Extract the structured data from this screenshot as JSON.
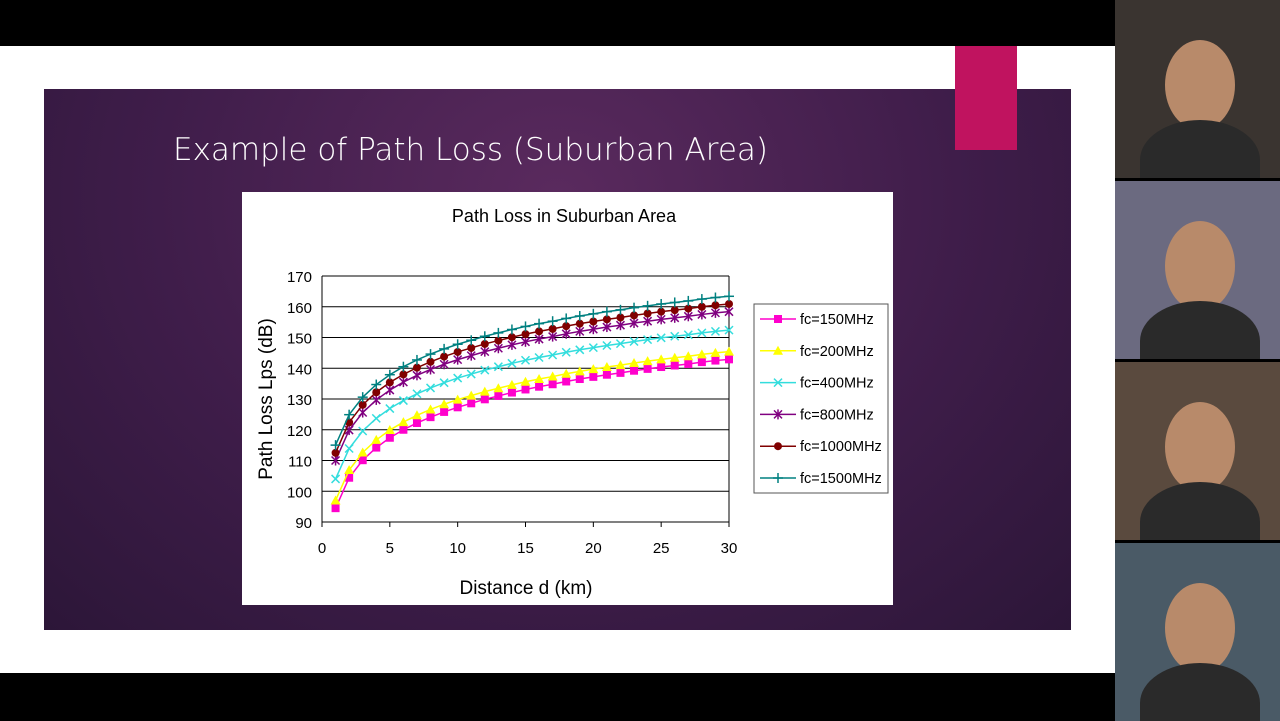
{
  "slide": {
    "title": "Example of Path Loss (Suburban Area)",
    "accent_color": "#c0135f"
  },
  "chart_data": {
    "type": "line",
    "title": "Path Loss in Suburban Area",
    "xlabel": "Distance d (km)",
    "ylabel": "Path Loss Lps (dB)",
    "xlim": [
      0,
      30
    ],
    "ylim": [
      90,
      170
    ],
    "xticks": [
      "0",
      "5",
      "10",
      "15",
      "20",
      "25",
      "30"
    ],
    "yticks": [
      "90",
      "100",
      "110",
      "120",
      "130",
      "140",
      "150",
      "160",
      "170"
    ],
    "grid": "horizontal",
    "legend_position": "right",
    "x": [
      1,
      2,
      3,
      4,
      5,
      6,
      7,
      8,
      9,
      10,
      11,
      12,
      13,
      14,
      15,
      16,
      17,
      18,
      19,
      20,
      21,
      22,
      23,
      24,
      25,
      26,
      27,
      28,
      29,
      30
    ],
    "series": [
      {
        "name": "fc=150MHz",
        "color": "#ff00cc",
        "marker": "square",
        "values": [
          94.5,
          104.4,
          110.1,
          114.2,
          117.4,
          120.0,
          122.2,
          124.1,
          125.8,
          127.3,
          128.6,
          129.9,
          131.0,
          132.1,
          133.1,
          134.0,
          134.8,
          135.7,
          136.5,
          137.2,
          137.9,
          138.5,
          139.2,
          139.8,
          140.4,
          140.9,
          141.4,
          142.0,
          142.5,
          142.9
        ]
      },
      {
        "name": "fc=200MHz",
        "color": "#ffff00",
        "marker": "triangle",
        "values": [
          97.0,
          106.9,
          112.6,
          116.7,
          119.9,
          122.5,
          124.7,
          126.6,
          128.3,
          129.8,
          131.1,
          132.4,
          133.5,
          134.6,
          135.6,
          136.5,
          137.3,
          138.2,
          139.0,
          139.7,
          140.4,
          141.0,
          141.7,
          142.3,
          142.9,
          143.4,
          143.9,
          144.5,
          145.0,
          145.4
        ]
      },
      {
        "name": "fc=400MHz",
        "color": "#33dddd",
        "marker": "x",
        "values": [
          104.0,
          113.9,
          119.6,
          123.7,
          126.9,
          129.5,
          131.7,
          133.6,
          135.3,
          136.8,
          138.1,
          139.4,
          140.5,
          141.6,
          142.6,
          143.5,
          144.3,
          145.2,
          146.0,
          146.7,
          147.4,
          148.0,
          148.7,
          149.3,
          149.9,
          150.4,
          150.9,
          151.5,
          152.0,
          152.4
        ]
      },
      {
        "name": "fc=800MHz",
        "color": "#800080",
        "marker": "asterisk",
        "values": [
          110.0,
          119.9,
          125.6,
          129.7,
          132.9,
          135.5,
          137.7,
          139.6,
          141.3,
          142.8,
          144.1,
          145.4,
          146.5,
          147.6,
          148.6,
          149.5,
          150.3,
          151.2,
          152.0,
          152.7,
          153.4,
          154.0,
          154.7,
          155.3,
          155.9,
          156.4,
          156.9,
          157.5,
          158.0,
          158.4
        ]
      },
      {
        "name": "fc=1000MHz",
        "color": "#800000",
        "marker": "circle",
        "values": [
          112.5,
          122.4,
          128.1,
          132.2,
          135.4,
          138.0,
          140.2,
          142.1,
          143.8,
          145.3,
          146.6,
          147.9,
          149.0,
          150.1,
          151.1,
          152.0,
          152.8,
          153.7,
          154.5,
          155.2,
          155.9,
          156.5,
          157.2,
          157.8,
          158.4,
          158.9,
          159.4,
          160.0,
          160.5,
          160.9
        ]
      },
      {
        "name": "fc=1500MHz",
        "color": "#008080",
        "marker": "plus",
        "values": [
          115.0,
          124.9,
          130.6,
          134.7,
          137.9,
          140.5,
          142.7,
          144.6,
          146.3,
          147.8,
          149.1,
          150.4,
          151.5,
          152.6,
          153.6,
          154.5,
          155.3,
          156.2,
          157.0,
          157.7,
          158.4,
          159.0,
          159.7,
          160.3,
          160.9,
          161.4,
          161.9,
          162.5,
          163.0,
          163.4
        ]
      }
    ]
  },
  "participants": [
    {
      "video": "participant-video-1",
      "bg": "#3a3430"
    },
    {
      "video": "participant-video-2",
      "bg": "#6b6a80"
    },
    {
      "video": "participant-video-3",
      "bg": "#5a4a3e"
    },
    {
      "video": "participant-video-4",
      "bg": "#4a5a66"
    }
  ]
}
